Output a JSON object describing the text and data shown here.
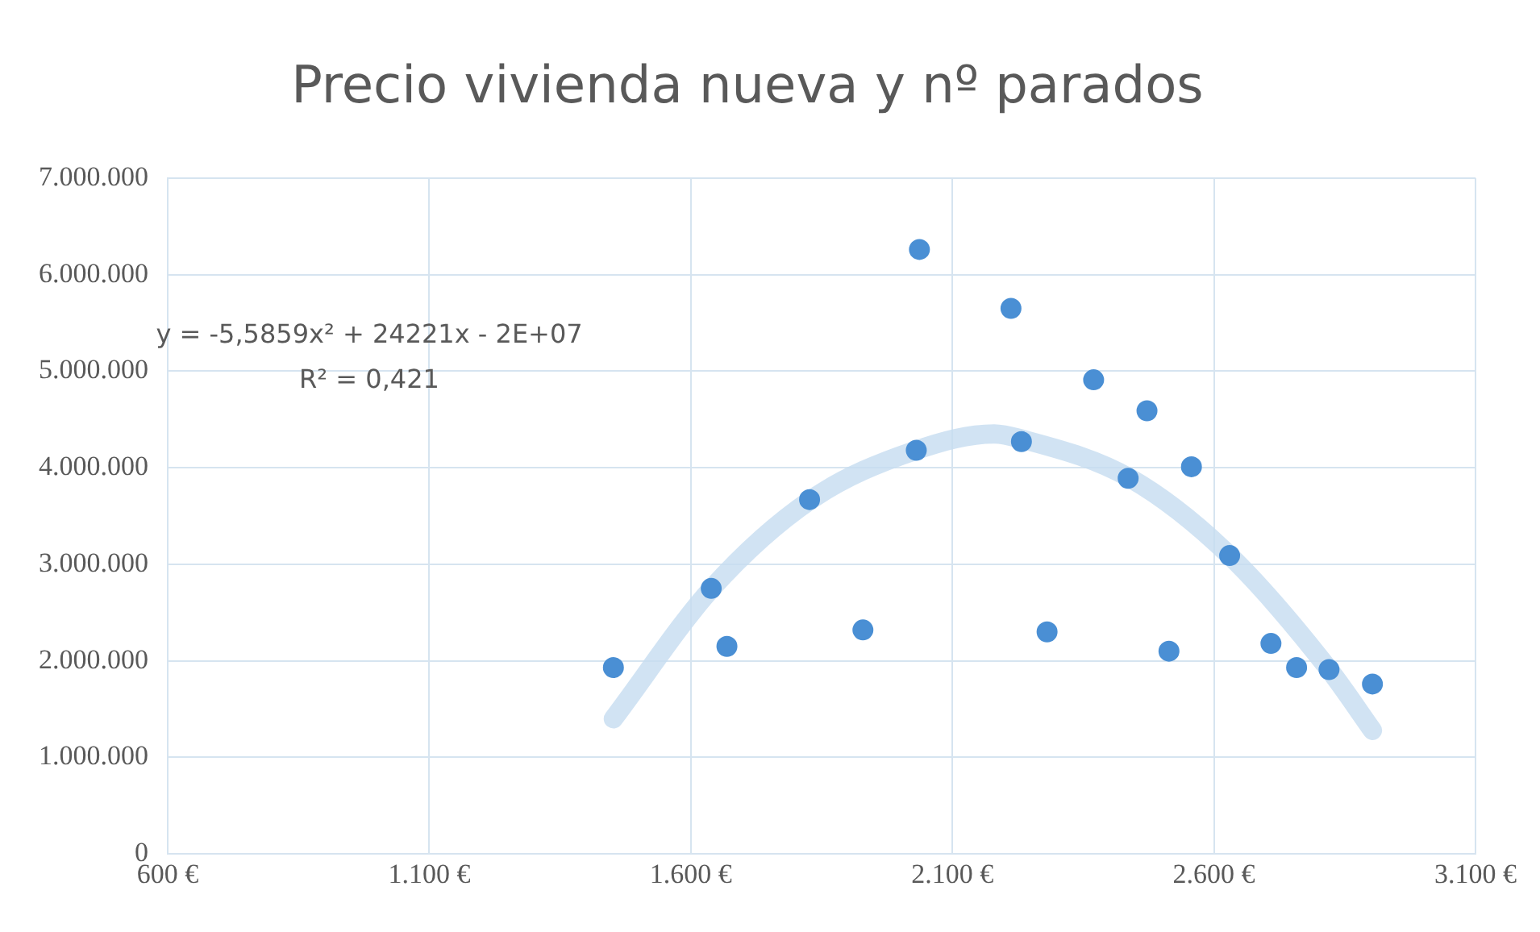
{
  "chart_data": {
    "type": "scatter",
    "title": "Precio vivienda nueva y nº parados",
    "series": [
      {
        "color": "#4a8fd4",
        "x": [
          1452,
          1669,
          1929,
          2037,
          2212,
          2281,
          2370,
          2472,
          2514,
          2557,
          2709,
          2758,
          2903,
          1639,
          1827,
          2031,
          2232,
          2436,
          2630,
          2820
        ],
        "values": [
          1930000,
          2150000,
          2320000,
          6260000,
          5650000,
          2300000,
          4910000,
          4590000,
          2100000,
          4010000,
          2180000,
          1930000,
          1760000,
          2750000,
          3670000,
          4180000,
          4270000,
          3890000,
          3090000,
          1910000
        ]
      },
      {
        "type": "line",
        "color": "#c5dcf0",
        "marker": "none",
        "x": [
          1452,
          1640,
          1830,
          2030,
          2180,
          2230,
          2440,
          2630,
          2820,
          2903
        ],
        "values": [
          1400000,
          2750000,
          3670000,
          4180000,
          4350000,
          4300000,
          3890000,
          3090000,
          1910000,
          1280000
        ]
      }
    ],
    "xlim": [
      600,
      3100
    ],
    "xticks": [
      {
        "value": 600,
        "label": "600 €"
      },
      {
        "value": 1100,
        "label": "1.100 €"
      },
      {
        "value": 1600,
        "label": "1.600 €"
      },
      {
        "value": 2100,
        "label": "2.100 €"
      },
      {
        "value": 2600,
        "label": "2.600 €"
      },
      {
        "value": 3100,
        "label": "3.100 €"
      }
    ],
    "ylim": [
      0,
      7000000
    ],
    "yticks": [
      0,
      {
        "value": 1000000,
        "label": "1.000.000"
      },
      {
        "value": 2000000,
        "label": "2.000.000"
      },
      {
        "value": 3000000,
        "label": "3.000.000"
      },
      {
        "value": 4000000,
        "label": "4.000.000"
      },
      {
        "value": 5000000,
        "label": "5.000.000"
      },
      {
        "value": 6000000,
        "label": "6.000.000"
      },
      {
        "value": 7000000,
        "label": "7.000.000"
      }
    ],
    "annotations": [
      "y = -5,5859x² + 24221x - 2E+07",
      "R² = 0,421"
    ],
    "grid": true,
    "legend": false,
    "marker": "circle"
  }
}
